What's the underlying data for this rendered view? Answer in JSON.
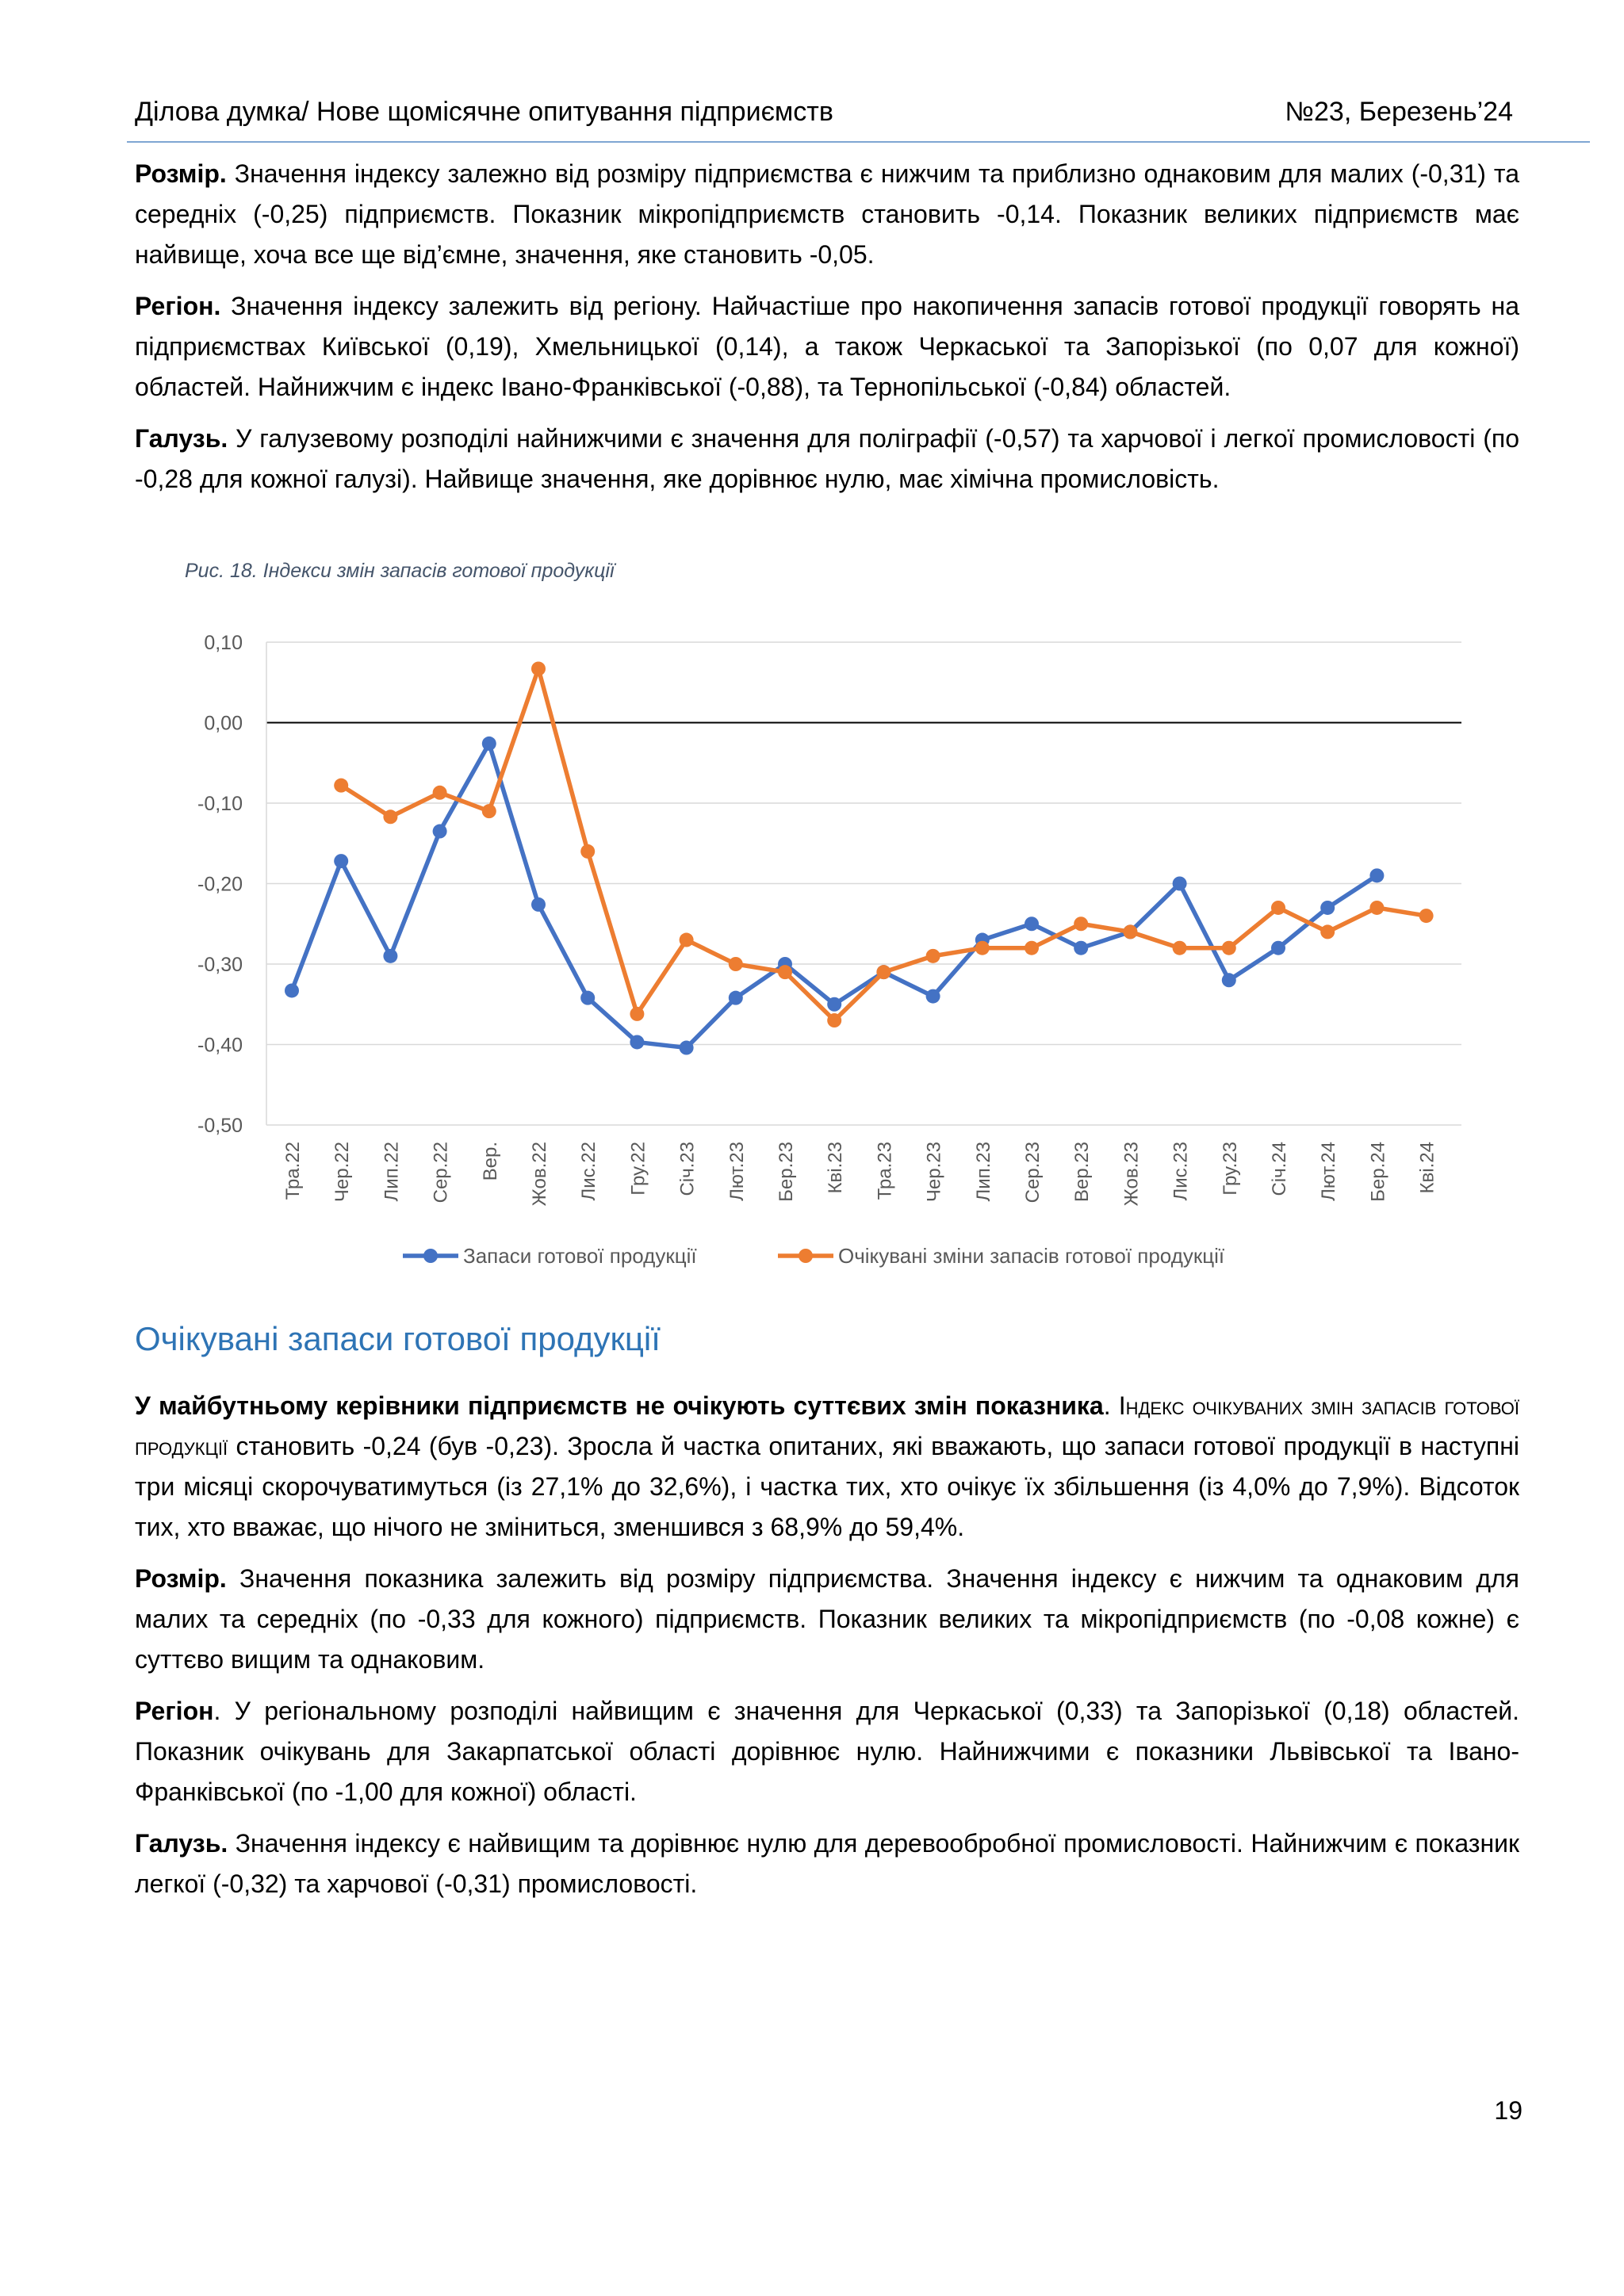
{
  "header": {
    "left": "Ділова думка/ Нове щомісячне опитування підприємств",
    "right": "№23, Березень’24"
  },
  "p1": {
    "lead": "Розмір.",
    "text": " Значення індексу залежно від розміру підприємства є нижчим та приблизно однаковим для малих (-0,31) та середніх (-0,25) підприємств. Показник мікропідприємств становить -0,14. Показник великих підприємств має найвище, хоча все ще від’ємне, значення, яке становить -0,05."
  },
  "p2": {
    "lead": "Регіон.",
    "text": " Значення індексу залежить від регіону. Найчастіше про накопичення запасів готової продукції говорять на підприємствах Київської (0,19), Хмельницької (0,14), а також Черкаської та Запорізької (по 0,07 для кожної) областей. Найнижчим є індекс Івано-Франківської (-0,88), та Тернопільської (-0,84) областей."
  },
  "p3": {
    "lead": "Галузь.",
    "text": " У галузевому розподілі найнижчими є значення для поліграфії (-0,57) та харчової і легкої промисловості (по -0,28 для кожної галузі). Найвище значення, яке дорівнює нулю, має хімічна промисловість."
  },
  "figure": {
    "caption": "Рис.  18. Індекси змін запасів готової продукції"
  },
  "chart_data": {
    "type": "line",
    "categories": [
      "Тра.22",
      "Чер.22",
      "Лип.22",
      "Сер.22",
      "Вер.",
      "Жов.22",
      "Лис.22",
      "Гру.22",
      "Січ.23",
      "Лют.23",
      "Бер.23",
      "Кві.23",
      "Тра.23",
      "Чер.23",
      "Лип.23",
      "Сер.23",
      "Вер.23",
      "Жов.23",
      "Лис.23",
      "Гру.23",
      "Січ.24",
      "Лют.24",
      "Бер.24",
      "Кві.24"
    ],
    "ylim": [
      -0.5,
      0.1
    ],
    "yticks": [
      "0,10",
      "0,00",
      "-0,10",
      "-0,20",
      "-0,30",
      "-0,40",
      "-0,50"
    ],
    "grid": true,
    "legend_position": "bottom",
    "series": [
      {
        "name": "Запаси готової продукції",
        "color": "#4472c4",
        "values": [
          -0.333,
          -0.172,
          -0.29,
          -0.135,
          -0.026,
          -0.226,
          -0.342,
          -0.397,
          -0.404,
          -0.342,
          -0.3,
          -0.35,
          -0.31,
          -0.34,
          -0.27,
          -0.25,
          -0.28,
          -0.26,
          -0.2,
          -0.32,
          -0.28,
          -0.23,
          -0.19,
          null
        ]
      },
      {
        "name": "Очікувані зміни запасів готової продукції",
        "color": "#ed7d31",
        "values": [
          null,
          -0.078,
          -0.117,
          -0.087,
          -0.11,
          0.067,
          -0.16,
          -0.362,
          -0.27,
          -0.3,
          -0.31,
          -0.37,
          -0.31,
          -0.29,
          -0.28,
          -0.28,
          -0.25,
          -0.26,
          -0.28,
          -0.28,
          -0.23,
          -0.26,
          -0.23,
          -0.24
        ]
      }
    ]
  },
  "section_title": "Очікувані запаси готової продукції",
  "p4": {
    "lead": "У майбутньому керівники підприємств не очікують суттєвих змін показника",
    "dot": ". ",
    "caps": "Індекс очікуваних змін запасів готової продукції",
    "text": " становить -0,24 (був -0,23). Зросла й частка опитаних, які вважають, що запаси готової продукції в наступні три місяці скорочуватимуться (із 27,1% до 32,6%), і частка тих, хто очікує їх збільшення (із 4,0% до 7,9%).  Відсоток тих, хто вважає, що нічого не зміниться, зменшився з 68,9% до 59,4%."
  },
  "p5": {
    "lead": "Розмір.",
    "text": " Значення показника залежить від розміру підприємства. Значення індексу є нижчим та однаковим для малих та середніх (по -0,33 для кожного) підприємств. Показник великих та мікропідприємств (по -0,08 кожне) є суттєво вищим та однаковим."
  },
  "p6": {
    "lead": "Регіон",
    "text": ". У регіональному розподілі найвищим є значення для Черкаської (0,33) та Запорізької (0,18) областей. Показник очікувань для Закарпатської області дорівнює нулю. Найнижчими є показники Львівської та Івано-Франківської (по -1,00 для кожної) області."
  },
  "p7": {
    "lead": "Галузь.",
    "text": " Значення індексу є найвищим та дорівнює нулю для деревообробної промисловості. Найнижчим є показник легкої (-0,32) та харчової (-0,31) промисловості."
  },
  "page_number": "19"
}
